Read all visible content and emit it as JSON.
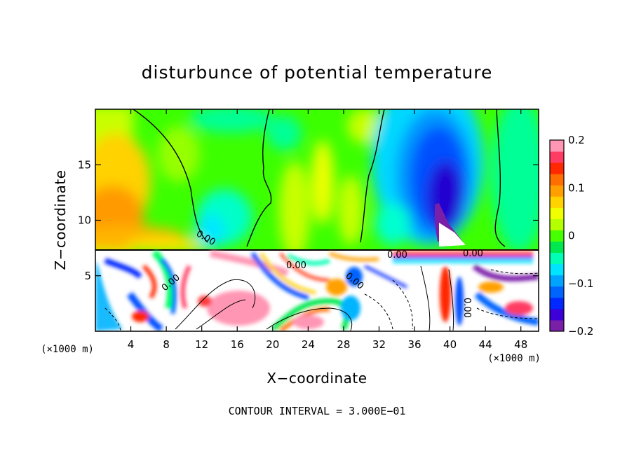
{
  "chart_data": {
    "type": "heatmap",
    "title": "disturbunce of potential temperature",
    "xlabel": "X−coordinate",
    "ylabel": "Z−coordinate",
    "x_unit_left": "(×1000 m)",
    "x_unit_right": "(×1000 m)",
    "xlim": [
      0,
      50
    ],
    "ylim": [
      0,
      20
    ],
    "x_ticks": [
      4,
      8,
      12,
      16,
      20,
      24,
      28,
      32,
      36,
      40,
      44,
      48
    ],
    "y_ticks": [
      5,
      10,
      15
    ],
    "colorbar": {
      "min": -0.2,
      "max": 0.2,
      "tick_values": [
        0.2,
        0.1,
        0,
        -0.1,
        -0.2
      ],
      "tick_labels": [
        "0.2",
        "0.1",
        "0",
        "−0.1",
        "−0.2"
      ],
      "colors": [
        "#7a1fa8",
        "#3c00d8",
        "#0028ff",
        "#0064ff",
        "#00a4ff",
        "#00e4ff",
        "#00ffb4",
        "#00e850",
        "#46ff00",
        "#b4ff00",
        "#f0ff00",
        "#ffd200",
        "#ffa000",
        "#ff6e00",
        "#ff2800",
        "#ff3c64",
        "#ff96b4"
      ]
    },
    "contour_labels": [
      "0.00",
      "0.00",
      "0.00",
      "0.00",
      "0.00",
      "0.00",
      "0.00"
    ],
    "footnote": "CONTOUR INTERVAL = 3.000E−01",
    "features": [
      {
        "name": "warm anomaly (upper layer)",
        "x": 2,
        "z": 11,
        "value": 0.12
      },
      {
        "name": "cold anomaly (upper layer)",
        "x": 40,
        "z": 12,
        "value": -0.19
      },
      {
        "name": "interface height",
        "z": 7.3
      }
    ]
  }
}
